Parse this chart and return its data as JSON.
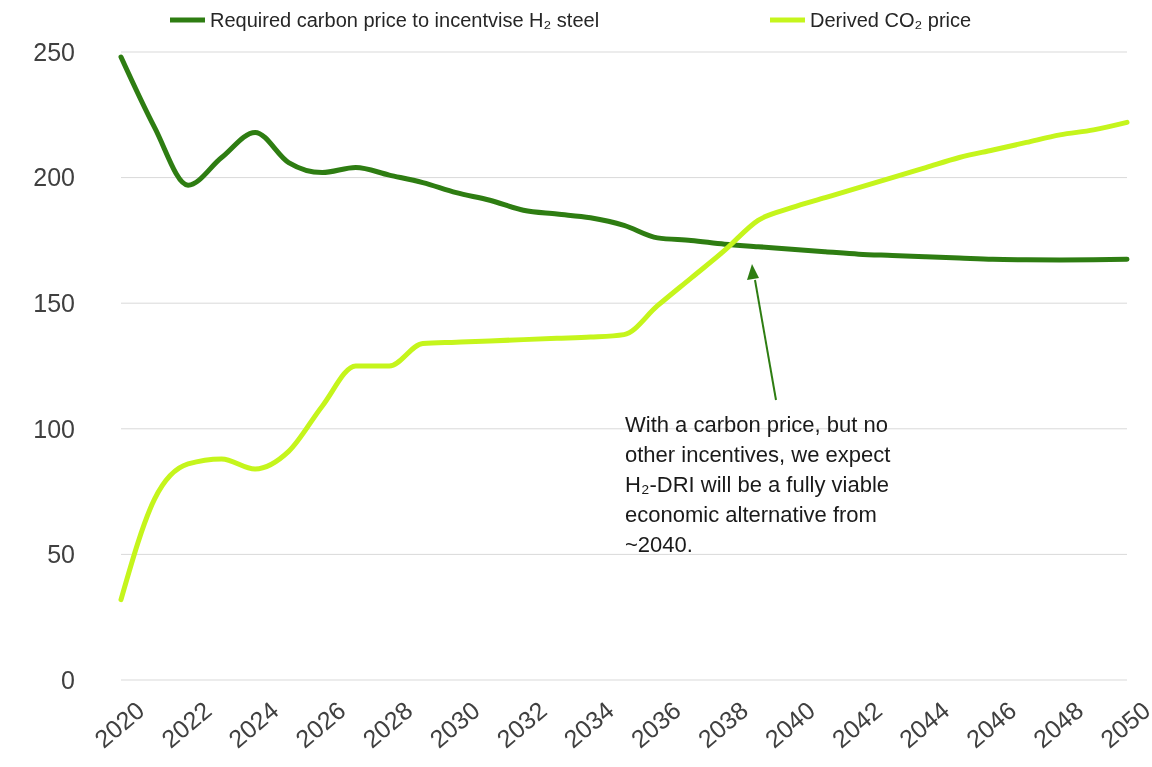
{
  "chart_data": {
    "type": "line",
    "x": [
      2020,
      2021,
      2022,
      2023,
      2024,
      2025,
      2026,
      2027,
      2028,
      2029,
      2030,
      2031,
      2032,
      2033,
      2034,
      2035,
      2036,
      2037,
      2038,
      2039,
      2040,
      2041,
      2042,
      2043,
      2044,
      2045,
      2046,
      2047,
      2048,
      2049,
      2050
    ],
    "series": [
      {
        "name": "Required carbon price to incentvise H₂ steel",
        "color": "#2e7d12",
        "values": [
          248,
          220,
          197,
          208,
          218,
          206,
          202,
          204,
          201,
          198,
          194,
          191,
          187,
          185.5,
          184,
          181,
          176,
          175,
          173.5,
          172.5,
          171.5,
          170.5,
          169.5,
          169,
          168.5,
          168,
          167.5,
          167.3,
          167.2,
          167.3,
          167.5
        ]
      },
      {
        "name": "Derived CO₂ price",
        "color": "#c5f51c",
        "values": [
          32,
          72,
          86,
          88,
          84,
          91,
          109,
          125,
          125,
          134,
          134.5,
          135,
          135.5,
          136,
          136.5,
          137.5,
          149,
          160,
          171,
          183,
          188,
          192,
          196,
          200,
          204,
          208,
          211,
          214,
          217,
          219,
          222
        ]
      }
    ],
    "xlim": [
      2020,
      2050
    ],
    "xticks": [
      2020,
      2022,
      2024,
      2026,
      2028,
      2030,
      2032,
      2034,
      2036,
      2038,
      2040,
      2042,
      2044,
      2046,
      2048,
      2050
    ],
    "ylim": [
      0,
      250
    ],
    "yticks": [
      0,
      50,
      100,
      150,
      200,
      250
    ],
    "grid": "y",
    "legend": "top",
    "marker": "none",
    "line_style": "solid",
    "annotations": [
      "With a carbon price, but no other incentives, we expect H₂-DRI will be a fully viable economic alternative from ~2040."
    ]
  }
}
